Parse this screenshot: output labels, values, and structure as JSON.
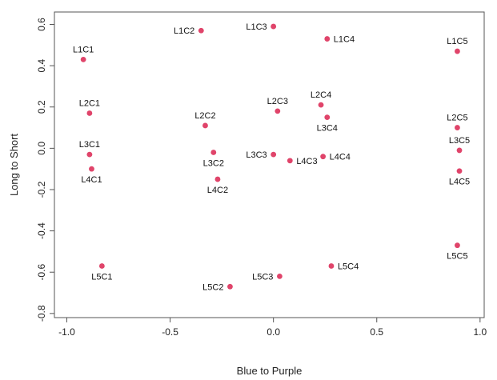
{
  "chart_data": {
    "type": "scatter",
    "title": "",
    "xlabel": "Blue to Purple",
    "ylabel": "Long to Short",
    "xlim": [
      -1.06,
      1.02
    ],
    "ylim": [
      -0.82,
      0.66
    ],
    "xticks": [
      -1.0,
      -0.5,
      0.0,
      0.5,
      1.0
    ],
    "xtick_labels": [
      "-1.0",
      "-0.5",
      "0.0",
      "0.5",
      "1.0"
    ],
    "yticks": [
      0.6,
      0.4,
      0.2,
      0.0,
      -0.2,
      -0.4,
      -0.6,
      -0.8
    ],
    "ytick_labels": [
      "0.6",
      "0.4",
      "0.2",
      "0.0",
      "-0.2",
      "-0.4",
      "-0.6",
      "-0.8"
    ],
    "grid": false,
    "legend": "none",
    "marker_color": "#e0446a",
    "points": [
      {
        "label": "L1C1",
        "x": -0.92,
        "y": 0.43,
        "pos": "above"
      },
      {
        "label": "L1C2",
        "x": -0.35,
        "y": 0.57,
        "pos": "left"
      },
      {
        "label": "L1C3",
        "x": 0.0,
        "y": 0.59,
        "pos": "left"
      },
      {
        "label": "L1C4",
        "x": 0.26,
        "y": 0.53,
        "pos": "right"
      },
      {
        "label": "L1C5",
        "x": 0.89,
        "y": 0.47,
        "pos": "above"
      },
      {
        "label": "L2C1",
        "x": -0.89,
        "y": 0.17,
        "pos": "above"
      },
      {
        "label": "L2C2",
        "x": -0.33,
        "y": 0.11,
        "pos": "above"
      },
      {
        "label": "L2C3",
        "x": 0.02,
        "y": 0.18,
        "pos": "above"
      },
      {
        "label": "L2C4",
        "x": 0.23,
        "y": 0.21,
        "pos": "above"
      },
      {
        "label": "L2C5",
        "x": 0.89,
        "y": 0.1,
        "pos": "above"
      },
      {
        "label": "L3C1",
        "x": -0.89,
        "y": -0.03,
        "pos": "above"
      },
      {
        "label": "L3C2",
        "x": -0.29,
        "y": -0.02,
        "pos": "below"
      },
      {
        "label": "L3C3",
        "x": 0.0,
        "y": -0.03,
        "pos": "left"
      },
      {
        "label": "L3C4",
        "x": 0.26,
        "y": 0.15,
        "pos": "below"
      },
      {
        "label": "L3C5",
        "x": 0.9,
        "y": -0.01,
        "pos": "above"
      },
      {
        "label": "L4C1",
        "x": -0.88,
        "y": -0.1,
        "pos": "below"
      },
      {
        "label": "L4C2",
        "x": -0.27,
        "y": -0.15,
        "pos": "below"
      },
      {
        "label": "L4C3",
        "x": 0.08,
        "y": -0.06,
        "pos": "right"
      },
      {
        "label": "L4C4",
        "x": 0.24,
        "y": -0.04,
        "pos": "right"
      },
      {
        "label": "L4C5",
        "x": 0.9,
        "y": -0.11,
        "pos": "below"
      },
      {
        "label": "L5C1",
        "x": -0.83,
        "y": -0.57,
        "pos": "below"
      },
      {
        "label": "L5C2",
        "x": -0.21,
        "y": -0.67,
        "pos": "left"
      },
      {
        "label": "L5C3",
        "x": 0.03,
        "y": -0.62,
        "pos": "left"
      },
      {
        "label": "L5C4",
        "x": 0.28,
        "y": -0.57,
        "pos": "right"
      },
      {
        "label": "L5C5",
        "x": 0.89,
        "y": -0.47,
        "pos": "below"
      }
    ]
  }
}
